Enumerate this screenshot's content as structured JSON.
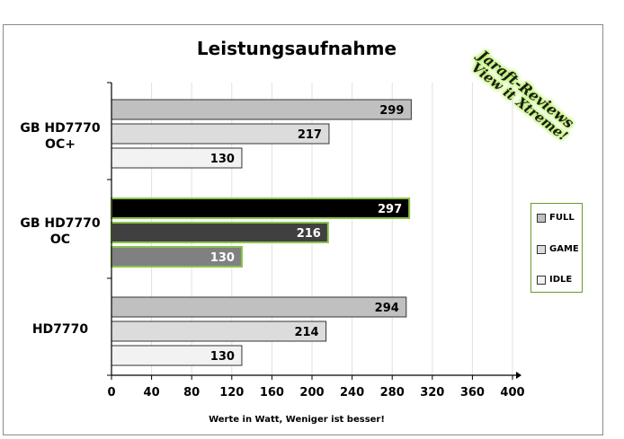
{
  "chart_data": {
    "type": "bar",
    "orientation": "horizontal",
    "title": "Leistungsaufnahme",
    "xlabel": "Werte in  Watt, Weniger ist besser!",
    "xlim": [
      0,
      400
    ],
    "xticks": [
      0,
      40,
      80,
      120,
      160,
      200,
      240,
      280,
      320,
      360,
      400
    ],
    "grid": true,
    "legend_position": "right",
    "categories": [
      {
        "label_line1": "GB HD7770",
        "label_line2": "OC+"
      },
      {
        "label_line1": "GB HD7770",
        "label_line2": "OC"
      },
      {
        "label_line1": "HD7770",
        "label_line2": ""
      }
    ],
    "series": [
      {
        "name": "FULL",
        "values": [
          299,
          297,
          294
        ]
      },
      {
        "name": "GAME",
        "values": [
          217,
          216,
          214
        ]
      },
      {
        "name": "IDLE",
        "values": [
          130,
          130,
          130
        ]
      }
    ],
    "highlighted_category_index": 1
  },
  "colors": {
    "full": "#c0c0c0",
    "game": "#dcdcdc",
    "idle": "#f2f2f2",
    "highlight_full": "#000000",
    "highlight_game": "#404040",
    "highlight_idle": "#808080",
    "highlight_border": "#8bc34a"
  },
  "watermark": {
    "line1": "Jaraft-Reviews",
    "line2": "View it Xtreme!"
  }
}
